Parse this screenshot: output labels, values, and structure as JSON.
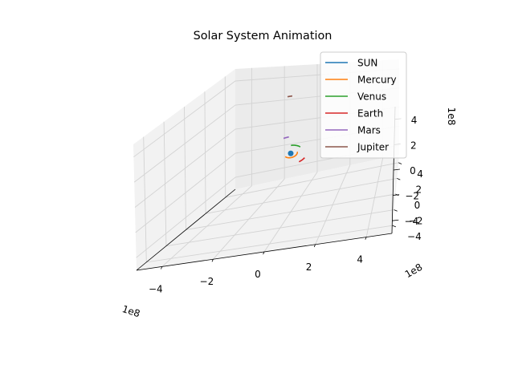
{
  "chart_data": {
    "type": "line",
    "projection": "3d",
    "title": "Solar System Animation",
    "axes": {
      "x": {
        "tick_labels": [
          "−4",
          "−2",
          "0",
          "2",
          "4"
        ],
        "offset_label": "1e8",
        "range": [
          -5,
          5
        ]
      },
      "y": {
        "tick_labels": [
          "−4",
          "−2",
          "0",
          "2",
          "4"
        ],
        "offset_label": "1e8",
        "range": [
          -5,
          5
        ]
      },
      "z": {
        "tick_labels": [
          "−4",
          "−2",
          "0",
          "2",
          "4"
        ],
        "offset_label": "1e8",
        "range": [
          -5,
          5
        ]
      }
    },
    "grid": true,
    "legend": {
      "placement": "upper right"
    },
    "series": [
      {
        "name": "SUN",
        "color": "#1f77b4",
        "marker_point": [
          0,
          0,
          0
        ]
      },
      {
        "name": "Mercury",
        "color": "#ff7f0e",
        "orbit_radius_1e8": 0.58,
        "arc_start_deg": 205,
        "arc_end_deg": 360
      },
      {
        "name": "Venus",
        "color": "#2ca02c",
        "orbit_radius_1e8": 1.08,
        "arc_start_deg": 30,
        "arc_end_deg": 80
      },
      {
        "name": "Earth",
        "color": "#d62728",
        "orbit_radius_1e8": 1.5,
        "arc_start_deg": 290,
        "arc_end_deg": 315
      },
      {
        "name": "Mars",
        "color": "#9467bd",
        "orbit_radius_1e8": 2.28,
        "arc_start_deg": 85,
        "arc_end_deg": 97
      },
      {
        "name": "Jupiter",
        "color": "#8c564b",
        "orbit_radius_1e8": 7.78,
        "arc_start_deg": 80,
        "arc_end_deg": 83
      }
    ]
  }
}
